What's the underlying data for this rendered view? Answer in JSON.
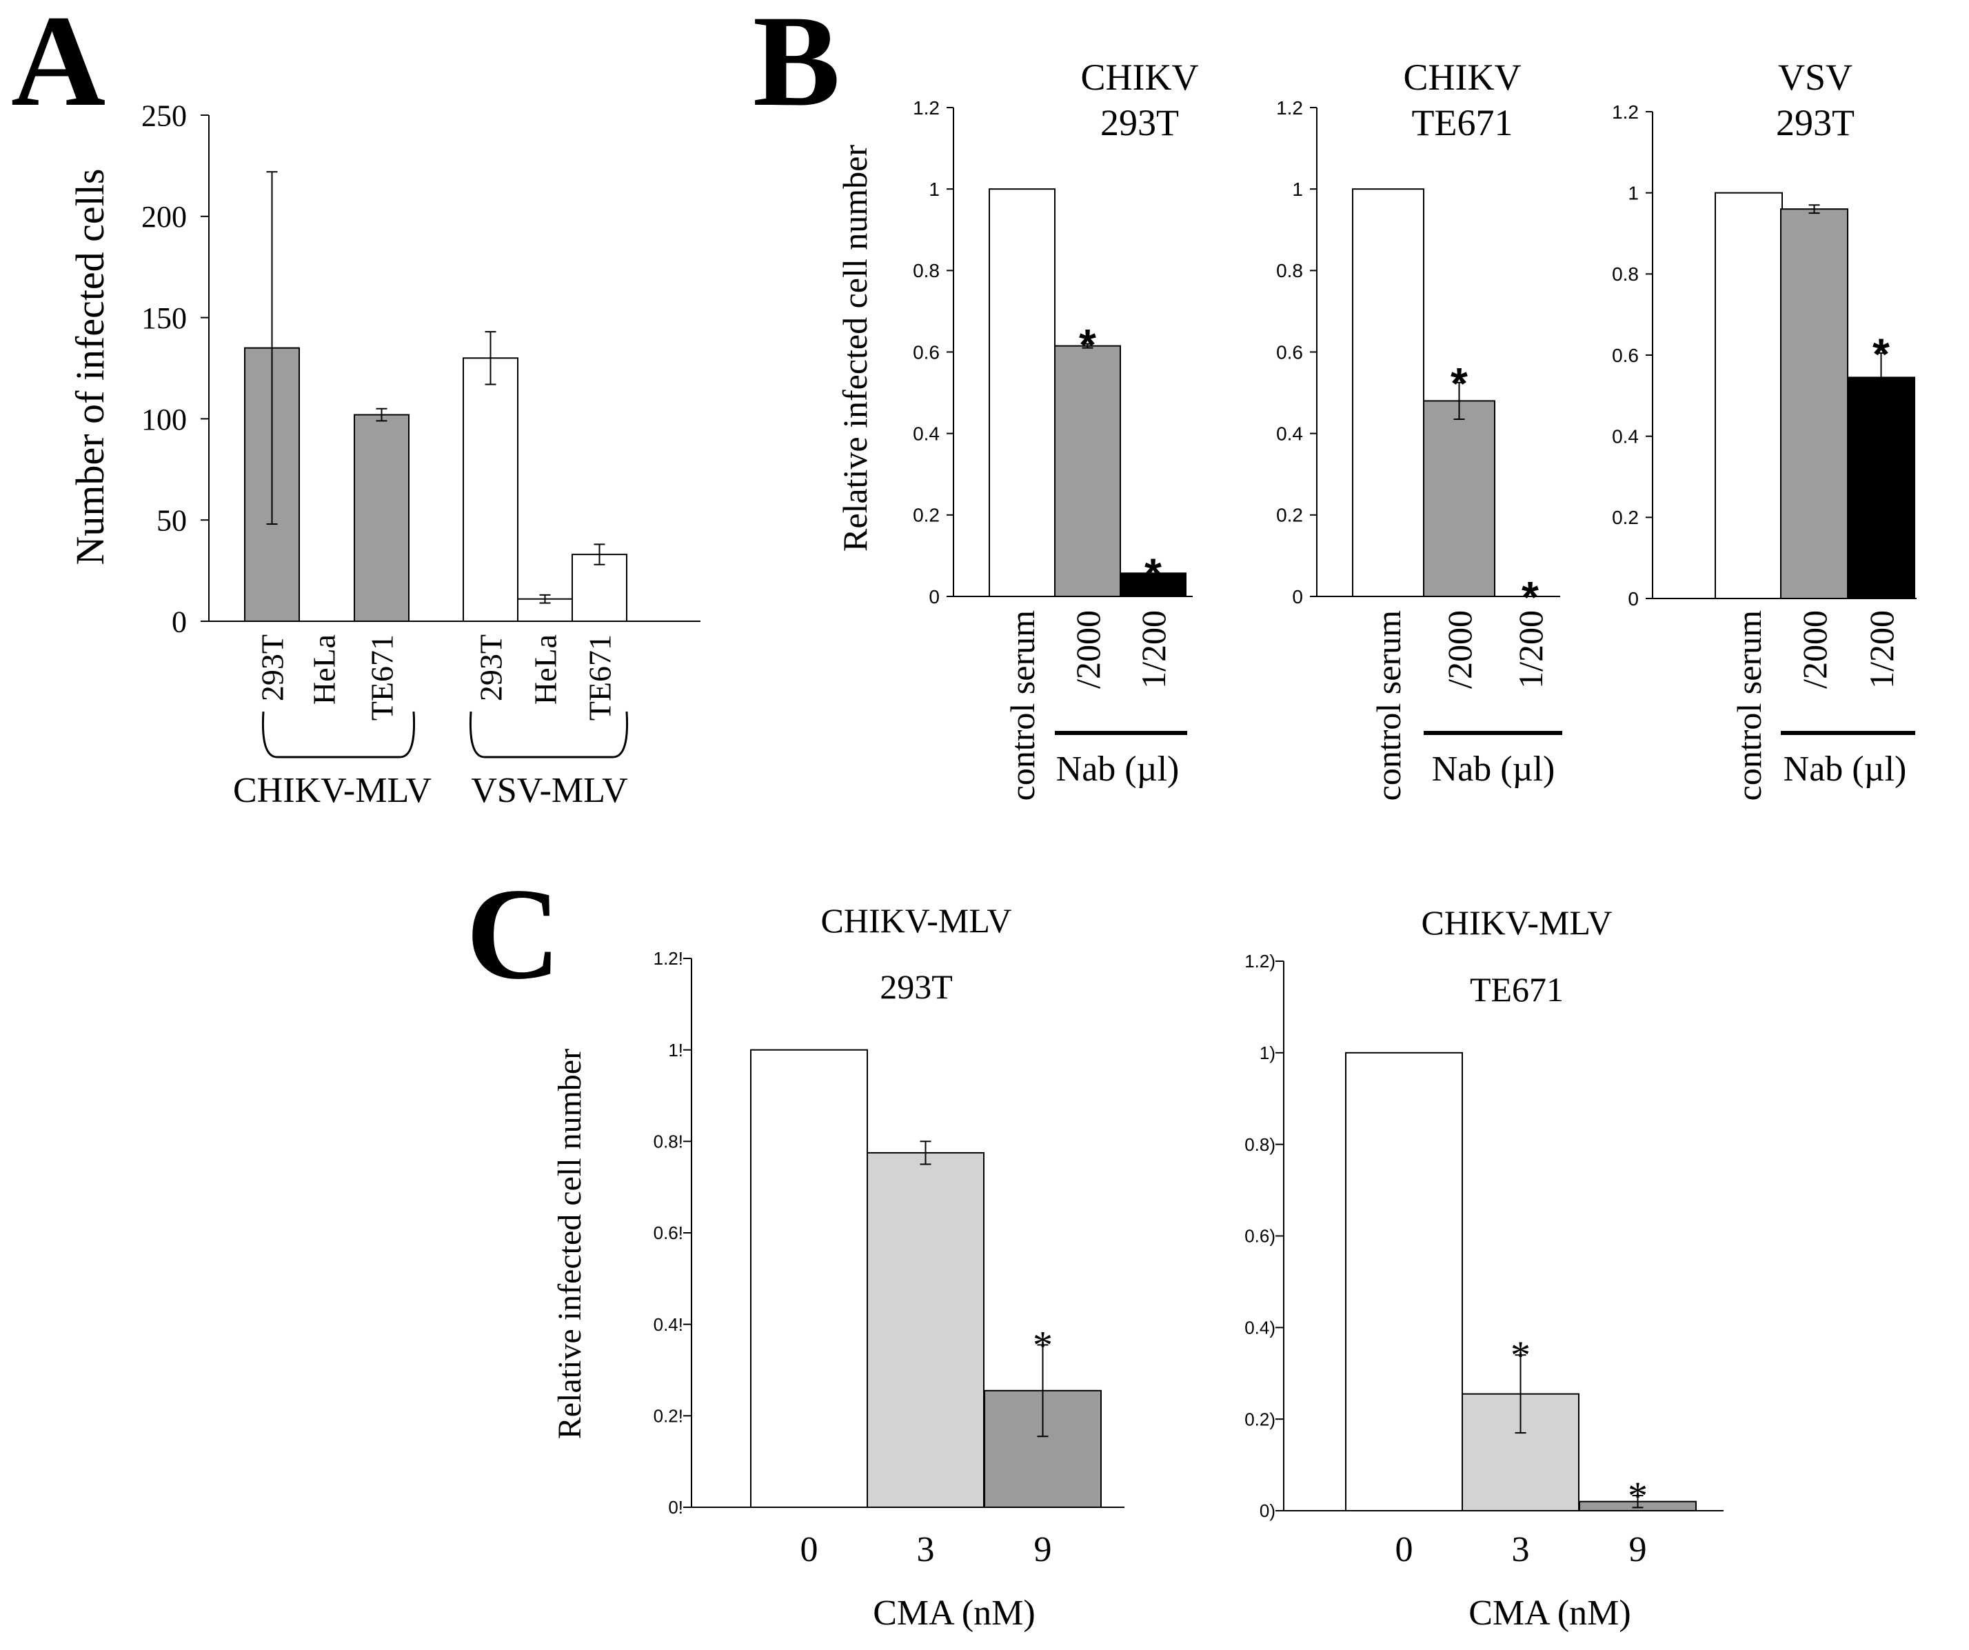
{
  "panels": {
    "A": "A",
    "B": "B",
    "C": "C"
  },
  "colors": {
    "white_bar": "#ffffff",
    "gray_bar": "#9d9d9d",
    "black_bar": "#000000",
    "light_bar": "#d3d3d3",
    "dark_bar": "#9b9b9b"
  },
  "chart_data": [
    {
      "id": "A",
      "type": "bar",
      "title": "",
      "ylabel": "Number of infected cells",
      "ylim": [
        0,
        250
      ],
      "yticks": [
        "0",
        "50",
        "100",
        "150",
        "200",
        "250"
      ],
      "categories": [
        "293T",
        "HeLa",
        "TE671",
        "293T",
        "HeLa",
        "TE671"
      ],
      "groups": [
        "CHIKV-MLV",
        "VSV-MLV"
      ],
      "values": [
        135,
        0,
        102,
        130,
        11,
        33
      ],
      "errors": [
        87,
        0,
        3,
        13,
        2,
        5
      ],
      "fills": [
        "gray",
        "gray",
        "gray",
        "white",
        "white",
        "white"
      ]
    },
    {
      "id": "B1",
      "type": "bar",
      "title_line1": "CHIKV",
      "title_line2": "293T",
      "ylabel": "Relative infected cell number",
      "ylim": [
        0,
        1.2
      ],
      "yticks": [
        "0",
        "0.2",
        "0.4",
        "0.6",
        "0.8",
        "1",
        "1.2"
      ],
      "categories": [
        "control serum",
        "/2000",
        "1/200"
      ],
      "group_label": "Nab (µl)",
      "values": [
        1.0,
        0.615,
        0.057
      ],
      "errors": [
        0,
        0.005,
        0
      ],
      "stars": [
        "",
        "*",
        "*"
      ],
      "fills": [
        "white",
        "gray",
        "black"
      ]
    },
    {
      "id": "B2",
      "type": "bar",
      "title_line1": "CHIKV",
      "title_line2": "TE671",
      "ylim": [
        0,
        1.2
      ],
      "yticks": [
        "0",
        "0.2",
        "0.4",
        "0.6",
        "0.8",
        "1",
        "1.2"
      ],
      "categories": [
        "control serum",
        "/2000",
        "1/200"
      ],
      "group_label": "Nab (µl)",
      "values": [
        1.0,
        0.48,
        0.0
      ],
      "errors": [
        0,
        0.045,
        0
      ],
      "stars": [
        "",
        "*",
        "*"
      ],
      "fills": [
        "white",
        "gray",
        "black"
      ]
    },
    {
      "id": "B3",
      "type": "bar",
      "title_line1": "VSV",
      "title_line2": "293T",
      "ylim": [
        0,
        1.2
      ],
      "yticks": [
        "0",
        "0.2",
        "0.4",
        "0.6",
        "0.8",
        "1",
        "1.2"
      ],
      "categories": [
        "control serum",
        "/2000",
        "1/200"
      ],
      "group_label": "Nab (µl)",
      "values": [
        1.0,
        0.96,
        0.545
      ],
      "errors": [
        0,
        0.01,
        0.06
      ],
      "stars": [
        "",
        "",
        "*"
      ],
      "fills": [
        "white",
        "gray",
        "black"
      ]
    },
    {
      "id": "C1",
      "type": "bar",
      "title_line1": "CHIKV-MLV",
      "title_line2": "293T",
      "ylabel": "Relative infected cell number",
      "xlabel": "CMA (nM)",
      "ylim": [
        0,
        1.2
      ],
      "yticks": [
        "0!",
        "0.2!",
        "0.4!",
        "0.6!",
        "0.8!",
        "1!",
        "1.2!"
      ],
      "categories": [
        "0",
        "3",
        "9"
      ],
      "values": [
        1.0,
        0.775,
        0.255
      ],
      "errors": [
        0,
        0.025,
        0.1
      ],
      "stars": [
        "",
        "",
        "*"
      ],
      "fills": [
        "white",
        "light",
        "dark"
      ]
    },
    {
      "id": "C2",
      "type": "bar",
      "title_line1": "CHIKV-MLV",
      "title_line2": "TE671",
      "xlabel": "CMA (nM)",
      "ylim": [
        0,
        1.2
      ],
      "yticks": [
        "0)",
        "0.2)",
        "0.4)",
        "0.6)",
        "0.8)",
        "1)",
        "1.2)"
      ],
      "categories": [
        "0",
        "3",
        "9"
      ],
      "values": [
        1.0,
        0.255,
        0.02
      ],
      "errors": [
        0,
        0.085,
        0.013
      ],
      "stars": [
        "",
        "*",
        "*"
      ],
      "fills": [
        "white",
        "light",
        "dark"
      ]
    }
  ]
}
